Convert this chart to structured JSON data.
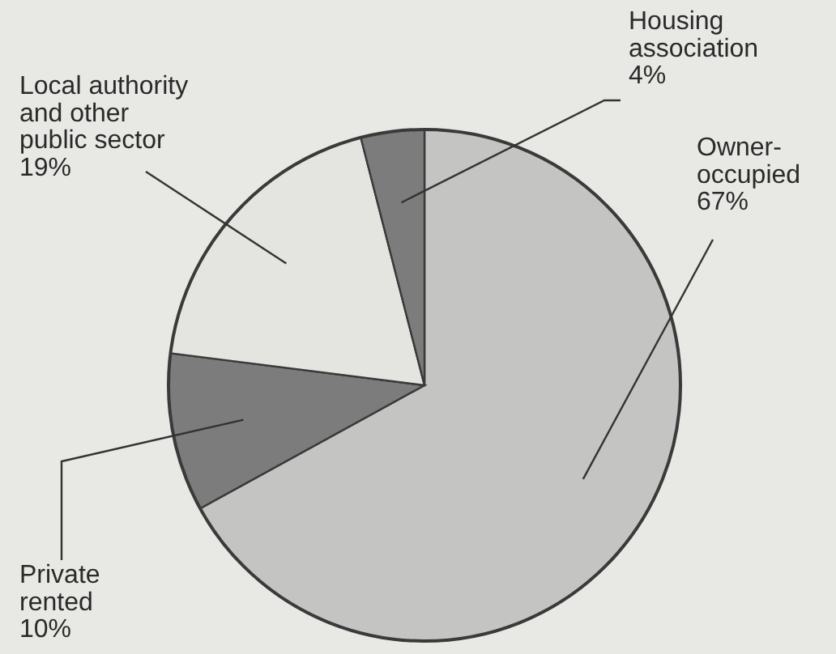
{
  "chart_data": {
    "type": "pie",
    "categories": [
      "Owner-occupied",
      "Private rented",
      "Local authority and other public sector",
      "Housing association"
    ],
    "values": [
      67,
      10,
      19,
      4
    ],
    "value_labels": [
      "67%",
      "10%",
      "19%",
      "4%"
    ],
    "colors": [
      "#c4c4c2",
      "#7c7c7c",
      "#e4e4e0",
      "#7c7c7c"
    ]
  }
}
